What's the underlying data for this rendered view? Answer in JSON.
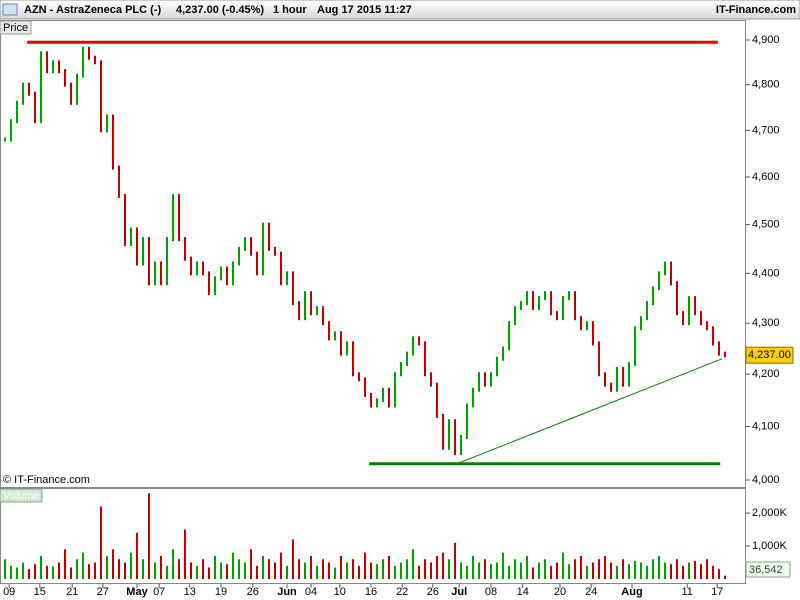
{
  "header": {
    "title": "AZN - AstraZeneca PLC (-)",
    "quote": "4,237.00 (-0.45%)",
    "interval": "1 hour",
    "timestamp": "Aug 17 2015 11:27",
    "brand": "IT-Finance.com"
  },
  "chart_data": [
    {
      "type": "candle",
      "panel_label": "Price",
      "copyright": "© IT-Finance.com",
      "log_scale": true,
      "last_price_label": "4,237.00",
      "xlim": [
        0,
        120
      ],
      "xticks": [
        {
          "value": 0.7,
          "label": "09"
        },
        {
          "value": 5.8,
          "label": "15"
        },
        {
          "value": 11.2,
          "label": "21"
        },
        {
          "value": 16.3,
          "label": "27"
        },
        {
          "value": 22,
          "label": "May"
        },
        {
          "value": 25.7,
          "label": "07"
        },
        {
          "value": 30.8,
          "label": "13"
        },
        {
          "value": 36,
          "label": "19"
        },
        {
          "value": 41.3,
          "label": "26"
        },
        {
          "value": 47,
          "label": "Jun"
        },
        {
          "value": 51,
          "label": "04"
        },
        {
          "value": 55.8,
          "label": "10"
        },
        {
          "value": 61,
          "label": "16"
        },
        {
          "value": 66.2,
          "label": "22"
        },
        {
          "value": 71.3,
          "label": "26"
        },
        {
          "value": 75.7,
          "label": "Jul"
        },
        {
          "value": 81,
          "label": "08"
        },
        {
          "value": 86.3,
          "label": "14"
        },
        {
          "value": 92.5,
          "label": "20"
        },
        {
          "value": 97.7,
          "label": "24"
        },
        {
          "value": 104.5,
          "label": "Aug"
        },
        {
          "value": 113.7,
          "label": "11"
        },
        {
          "value": 118.7,
          "label": "17"
        }
      ],
      "ylim": [
        4000,
        4900
      ],
      "yticks": [
        {
          "value": 4000,
          "label": "4,000"
        },
        {
          "value": 4100,
          "label": "4,100"
        },
        {
          "value": 4200,
          "label": "4,200"
        },
        {
          "value": 4300,
          "label": "4,300"
        },
        {
          "value": 4400,
          "label": "4,400"
        },
        {
          "value": 4500,
          "label": "4,500"
        },
        {
          "value": 4600,
          "label": "4,600"
        },
        {
          "value": 4700,
          "label": "4,700"
        },
        {
          "value": 4800,
          "label": "4,800"
        },
        {
          "value": 4900,
          "label": "4,900"
        }
      ],
      "up_color": "#00a000",
      "down_color": "#c00000",
      "series": [
        {
          "name": "Price",
          "values": [
            4680,
            4720,
            4760,
            4800,
            4780,
            4720,
            4870,
            4830,
            4850,
            4830,
            4800,
            4760,
            4820,
            4880,
            4860,
            4850,
            4700,
            4730,
            4620,
            4560,
            4460,
            4490,
            4420,
            4470,
            4380,
            4420,
            4380,
            4470,
            4560,
            4470,
            4430,
            4400,
            4420,
            4400,
            4360,
            4390,
            4410,
            4380,
            4420,
            4450,
            4470,
            4440,
            4400,
            4500,
            4450,
            4440,
            4380,
            4400,
            4340,
            4310,
            4360,
            4320,
            4330,
            4300,
            4270,
            4280,
            4240,
            4260,
            4200,
            4190,
            4160,
            4140,
            4150,
            4170,
            4140,
            4200,
            4220,
            4240,
            4270,
            4260,
            4200,
            4180,
            4120,
            4060,
            4110,
            4050,
            4080,
            4140,
            4170,
            4200,
            4180,
            4200,
            4230,
            4250,
            4300,
            4330,
            4340,
            4360,
            4330,
            4350,
            4360,
            4320,
            4310,
            4350,
            4360,
            4310,
            4290,
            4300,
            4260,
            4200,
            4180,
            4170,
            4210,
            4180,
            4220,
            4290,
            4310,
            4340,
            4370,
            4400,
            4420,
            4380,
            4320,
            4300,
            4350,
            4320,
            4300,
            4290,
            4260,
            4240,
            4237
          ]
        }
      ],
      "lines": [
        {
          "color": "#e00000",
          "x": [
            3.7,
            118.8
          ],
          "values": [
            4895,
            4895
          ]
        },
        {
          "color": "#008000",
          "x": [
            60.7,
            119.2
          ],
          "values": [
            4030,
            4030
          ]
        },
        {
          "color": "#008000",
          "x": [
            75.3,
            119.5
          ],
          "values": [
            4030,
            4230
          ]
        }
      ]
    },
    {
      "type": "volume_bar",
      "panel_label": "Volume",
      "volume_badge": "36,542",
      "ylim": [
        0,
        2700
      ],
      "yticks": [
        {
          "value": 1000,
          "label": "1,000K"
        },
        {
          "value": 2000,
          "label": "2,000K"
        }
      ],
      "series": [
        {
          "name": "Volume",
          "values": [
            600,
            400,
            350,
            500,
            300,
            450,
            700,
            400,
            380,
            500,
            900,
            350,
            600,
            800,
            450,
            500,
            2200,
            700,
            900,
            600,
            500,
            800,
            1400,
            600,
            2600,
            500,
            700,
            400,
            900,
            600,
            1500,
            500,
            400,
            600,
            350,
            700,
            500,
            450,
            800,
            600,
            500,
            900,
            400,
            700,
            600,
            500,
            800,
            400,
            1200,
            600,
            500,
            700,
            400,
            600,
            500,
            350,
            700,
            500,
            600,
            400,
            800,
            500,
            450,
            600,
            700,
            400,
            500,
            600,
            900,
            400,
            600,
            500,
            700,
            800,
            600,
            1100,
            500,
            400,
            700,
            500,
            600,
            450,
            500,
            800,
            400,
            600,
            500,
            700,
            350,
            500,
            600,
            400,
            500,
            800,
            450,
            600,
            700,
            400,
            500,
            600,
            700,
            500,
            400,
            600,
            450,
            550,
            500,
            400,
            600,
            700,
            500,
            450,
            600,
            400,
            500,
            550,
            450,
            600,
            400,
            300,
            100
          ]
        }
      ]
    }
  ]
}
